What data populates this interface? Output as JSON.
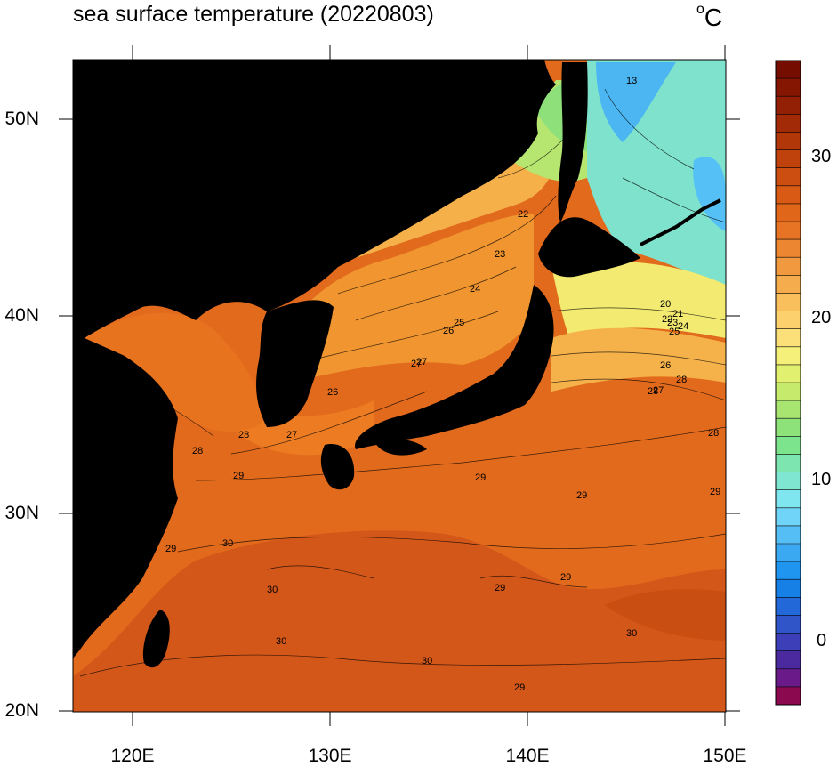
{
  "title": "sea surface temperature (20220803)",
  "units": {
    "deg": "o",
    "c": "C"
  },
  "axes": {
    "lat_labels": [
      "50N",
      "40N",
      "30N",
      "20N"
    ],
    "lon_labels": [
      "120E",
      "130E",
      "140E",
      "150E"
    ]
  },
  "colorbar": {
    "labels": [
      "30",
      "20",
      "10",
      "0"
    ],
    "range": [
      -4,
      36
    ],
    "colors": [
      "#8b0a4f",
      "#6b1a8a",
      "#4b2aa0",
      "#3d3fb8",
      "#2f55c9",
      "#2268d8",
      "#1780e6",
      "#1f95ef",
      "#3aa9f2",
      "#55bef5",
      "#6fd4f7",
      "#7fe6f0",
      "#7fe6d2",
      "#7de6b0",
      "#7de48e",
      "#8ee27a",
      "#a8e470",
      "#c6ea6c",
      "#e2f070",
      "#f5f07a",
      "#fbe07a",
      "#fcd06c",
      "#f9bf5c",
      "#f5ac4c",
      "#f1993e",
      "#ec8630",
      "#e77424",
      "#e0661a",
      "#d85a14",
      "#cc4e10",
      "#bf420c",
      "#b13608",
      "#a32a06",
      "#932004",
      "#841602",
      "#750e00"
    ]
  },
  "contour_labels": [
    "13",
    "22",
    "23",
    "24",
    "25",
    "26",
    "27",
    "26",
    "27",
    "28",
    "28",
    "29",
    "29",
    "29",
    "29",
    "30",
    "30",
    "30",
    "30",
    "30",
    "29",
    "29",
    "20",
    "21",
    "22",
    "23",
    "24",
    "25",
    "26",
    "27",
    "28",
    "28",
    "28",
    "27",
    "29",
    "29"
  ],
  "colors": {
    "land": "#000000",
    "background": "#ffffff"
  }
}
